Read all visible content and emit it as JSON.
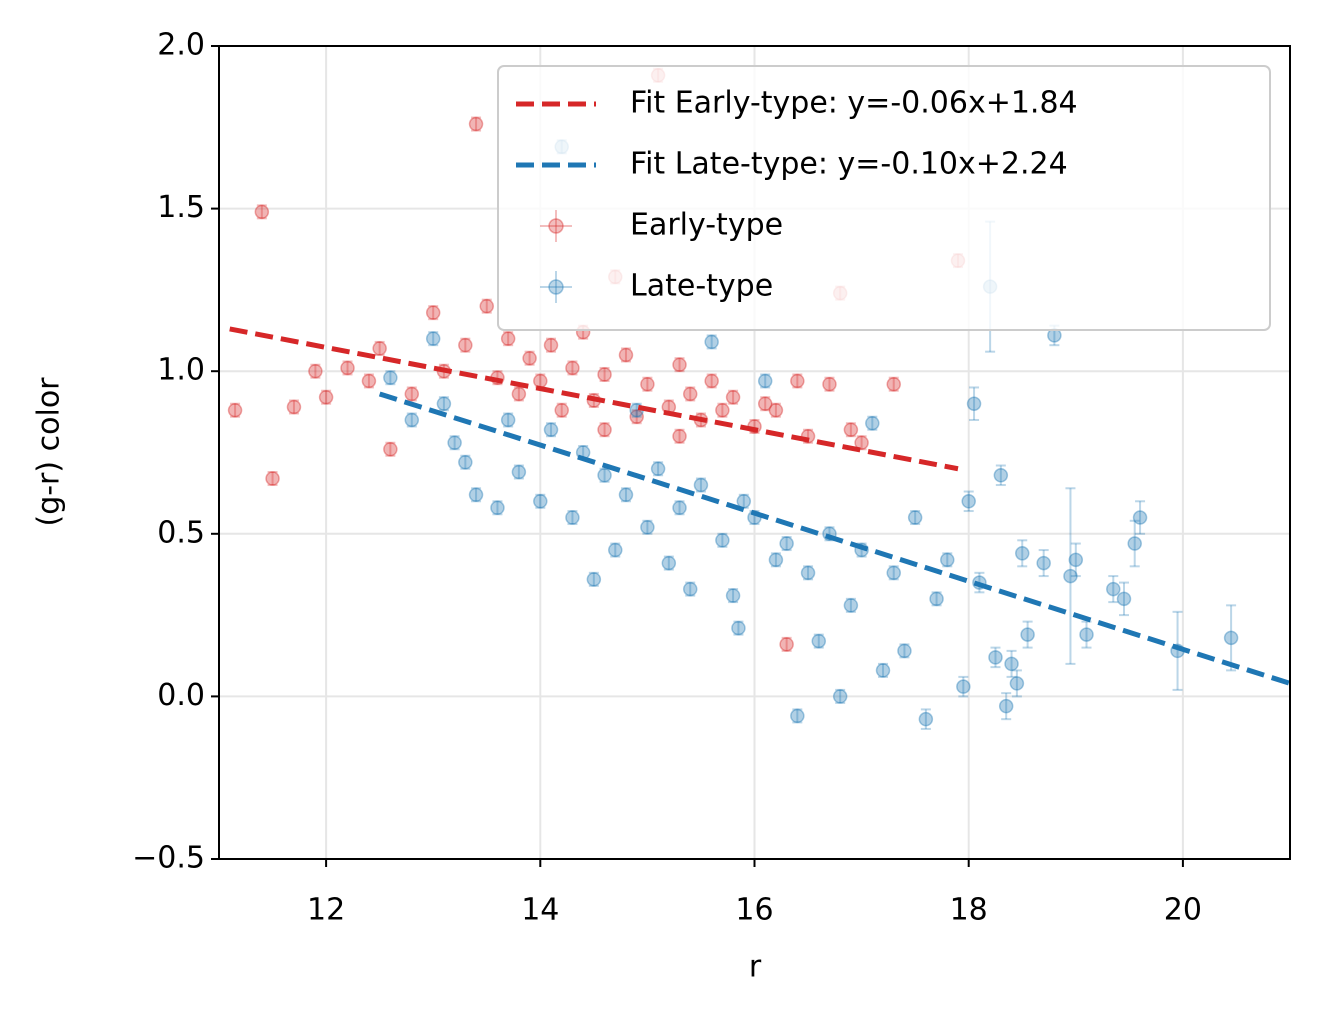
{
  "chart_data": {
    "type": "scatter",
    "xlabel": "r",
    "ylabel": "(g-r) color",
    "xlim": [
      11,
      21
    ],
    "ylim": [
      -0.5,
      2.0
    ],
    "xticks": [
      12,
      14,
      16,
      18,
      20
    ],
    "yticks": [
      {
        "value": -0.5,
        "label": "−0.5"
      },
      {
        "value": 0,
        "label": "0.0"
      },
      {
        "value": 0.5,
        "label": "0.5"
      },
      {
        "value": 1,
        "label": "1.0"
      },
      {
        "value": 1.5,
        "label": "1.5"
      },
      {
        "value": 2,
        "label": "2.0"
      }
    ],
    "grid": true,
    "legend": "upper right",
    "lines": [
      {
        "name": "Fit Early-type: y=-0.06x+1.84",
        "color": "#d62728",
        "x": [
          11.1,
          17.9
        ],
        "values": [
          1.13,
          0.7
        ]
      },
      {
        "name": "Fit Late-type: y=-0.10x+2.24",
        "color": "#1f77b4",
        "x": [
          12.5,
          21
        ],
        "values": [
          0.93,
          0.04
        ]
      }
    ],
    "series": [
      {
        "name": "Early-type",
        "color": "#d62728",
        "x": [
          11.15,
          11.4,
          11.5,
          11.7,
          11.9,
          12.0,
          12.2,
          12.4,
          12.5,
          12.6,
          12.8,
          13.0,
          13.1,
          13.3,
          13.4,
          13.5,
          13.6,
          13.7,
          13.8,
          13.9,
          14.0,
          14.1,
          14.2,
          14.3,
          14.4,
          14.5,
          14.6,
          14.7,
          14.8,
          14.9,
          15.0,
          15.1,
          15.2,
          15.3,
          15.4,
          15.5,
          15.6,
          15.7,
          15.8,
          16.0,
          16.2,
          16.3,
          16.4,
          16.5,
          16.7,
          16.8,
          16.9,
          17.0,
          17.3,
          17.9,
          16.1,
          14.6,
          15.3
        ],
        "values": [
          0.88,
          1.49,
          0.67,
          0.89,
          1.0,
          0.92,
          1.01,
          0.97,
          1.07,
          0.76,
          0.93,
          1.18,
          1.0,
          1.08,
          1.76,
          1.2,
          0.98,
          1.1,
          0.93,
          1.04,
          0.97,
          1.08,
          0.88,
          1.01,
          1.12,
          0.91,
          0.99,
          1.29,
          1.05,
          0.86,
          0.96,
          1.91,
          0.89,
          1.02,
          0.93,
          0.85,
          0.97,
          0.88,
          0.92,
          0.83,
          0.88,
          0.16,
          0.97,
          0.8,
          0.96,
          1.24,
          0.82,
          0.78,
          0.96,
          1.34,
          0.9,
          0.82,
          0.8
        ],
        "yerr": [
          0.02,
          0.02,
          0.02,
          0.02,
          0.02,
          0.02,
          0.02,
          0.02,
          0.02,
          0.02,
          0.02,
          0.02,
          0.02,
          0.02,
          0.02,
          0.02,
          0.02,
          0.02,
          0.02,
          0.02,
          0.02,
          0.02,
          0.02,
          0.02,
          0.02,
          0.02,
          0.02,
          0.02,
          0.02,
          0.02,
          0.02,
          0.02,
          0.02,
          0.02,
          0.02,
          0.02,
          0.02,
          0.02,
          0.02,
          0.02,
          0.02,
          0.02,
          0.02,
          0.02,
          0.02,
          0.02,
          0.02,
          0.02,
          0.02,
          0.02,
          0.02,
          0.02,
          0.02
        ]
      },
      {
        "name": "Late-type",
        "color": "#1f77b4",
        "x": [
          12.6,
          12.8,
          13.0,
          13.1,
          13.2,
          13.3,
          13.4,
          13.6,
          13.7,
          13.8,
          14.0,
          14.1,
          14.2,
          14.3,
          14.4,
          14.5,
          14.6,
          14.7,
          14.8,
          14.9,
          15.0,
          15.1,
          15.2,
          15.3,
          15.4,
          15.5,
          15.6,
          15.7,
          15.8,
          15.85,
          16.0,
          16.1,
          16.2,
          16.4,
          16.5,
          16.6,
          16.7,
          16.8,
          16.9,
          17.0,
          17.1,
          17.2,
          17.3,
          17.4,
          17.5,
          17.6,
          17.7,
          17.8,
          17.95,
          18.0,
          18.05,
          18.1,
          18.2,
          18.25,
          18.3,
          18.35,
          18.4,
          18.45,
          18.5,
          18.55,
          18.7,
          18.8,
          18.95,
          19.0,
          19.1,
          19.35,
          19.45,
          19.55,
          19.6,
          19.95,
          20.45,
          16.3,
          15.9
        ],
        "values": [
          0.98,
          0.85,
          1.1,
          0.9,
          0.78,
          0.72,
          0.62,
          0.58,
          0.85,
          0.69,
          0.6,
          0.82,
          1.69,
          0.55,
          0.75,
          0.36,
          0.68,
          0.45,
          0.62,
          0.88,
          0.52,
          0.7,
          0.41,
          0.58,
          0.33,
          0.65,
          1.09,
          0.48,
          0.31,
          0.21,
          0.55,
          0.97,
          0.42,
          -0.06,
          0.38,
          0.17,
          0.5,
          0.0,
          0.28,
          0.45,
          0.84,
          0.08,
          0.38,
          0.14,
          0.55,
          -0.07,
          0.3,
          0.42,
          0.03,
          0.6,
          0.9,
          0.35,
          1.26,
          0.12,
          0.68,
          -0.03,
          0.1,
          0.04,
          0.44,
          0.19,
          0.41,
          1.11,
          0.37,
          0.42,
          0.19,
          0.33,
          0.3,
          0.47,
          0.55,
          0.14,
          0.18,
          0.47,
          0.6
        ],
        "yerr": [
          0.02,
          0.02,
          0.02,
          0.02,
          0.02,
          0.02,
          0.02,
          0.02,
          0.02,
          0.02,
          0.02,
          0.02,
          0.02,
          0.02,
          0.02,
          0.02,
          0.02,
          0.02,
          0.02,
          0.02,
          0.02,
          0.02,
          0.02,
          0.02,
          0.02,
          0.02,
          0.02,
          0.02,
          0.02,
          0.02,
          0.02,
          0.02,
          0.02,
          0.02,
          0.02,
          0.02,
          0.02,
          0.02,
          0.02,
          0.02,
          0.02,
          0.02,
          0.02,
          0.02,
          0.02,
          0.03,
          0.02,
          0.02,
          0.03,
          0.03,
          0.05,
          0.03,
          0.2,
          0.03,
          0.03,
          0.04,
          0.04,
          0.04,
          0.04,
          0.04,
          0.04,
          0.03,
          0.27,
          0.05,
          0.04,
          0.04,
          0.05,
          0.07,
          0.05,
          0.12,
          0.1,
          0.02,
          0.02
        ]
      }
    ]
  }
}
